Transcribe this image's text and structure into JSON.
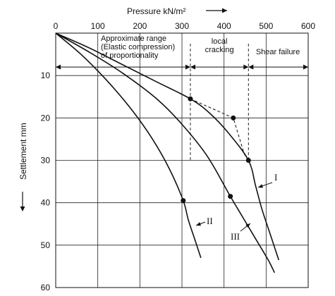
{
  "chart_data": {
    "type": "line",
    "xlabel": "Pressure kN/m²",
    "ylabel": "Settlement mm",
    "xlim": [
      0,
      600
    ],
    "ylim": [
      0,
      60
    ],
    "x_axis_position": "top",
    "y_inverted": true,
    "grid": true,
    "x_ticks": [
      "0",
      "100",
      "200",
      "300",
      "400",
      "500",
      "600"
    ],
    "y_ticks": [
      "10",
      "20",
      "30",
      "40",
      "50",
      "60"
    ],
    "series": [
      {
        "name": "I",
        "x": [
          0,
          80,
          160,
          240,
          320,
          365,
          410,
          458,
          475,
          490,
          510,
          530
        ],
        "y": [
          0,
          3.5,
          7.5,
          11.5,
          15.5,
          18.8,
          23.5,
          30,
          36,
          41.5,
          47.5,
          53.5
        ],
        "markers": [
          [
            320,
            15.5
          ],
          [
            458,
            30
          ]
        ]
      },
      {
        "name": "II",
        "x": [
          0,
          60,
          120,
          180,
          230,
          270,
          303,
          315,
          330,
          345
        ],
        "y": [
          0,
          5,
          11,
          18,
          25,
          32,
          39.5,
          44,
          48.5,
          53
        ],
        "markers": [
          [
            303,
            39.5
          ]
        ]
      },
      {
        "name": "III",
        "x": [
          0,
          80,
          160,
          240,
          300,
          360,
          415,
          445,
          475,
          505,
          520
        ],
        "y": [
          0,
          4.5,
          9.5,
          15.5,
          21.5,
          29,
          38.5,
          43.5,
          48.5,
          53.5,
          56.5
        ],
        "markers": [
          [
            415,
            38.5
          ]
        ]
      }
    ],
    "construction_lines": [
      {
        "x": [
          320,
          422,
          448
        ],
        "y": [
          15.5,
          20,
          28.5
        ]
      },
      {
        "x": [
          448,
          458
        ],
        "y": [
          28.5,
          30
        ]
      }
    ],
    "marker_points": [
      [
        422,
        20
      ]
    ],
    "zone_boundaries": [
      320,
      458
    ],
    "arrow_level": 8,
    "regions": [
      {
        "lines": [
          "Approximate range",
          "(Elastic compression)",
          "of proportionality"
        ]
      },
      {
        "lines": [
          "local",
          "cracking"
        ]
      },
      {
        "lines": [
          "Shear failure"
        ]
      }
    ],
    "curve_labels": [
      "I",
      "II",
      "III"
    ]
  }
}
